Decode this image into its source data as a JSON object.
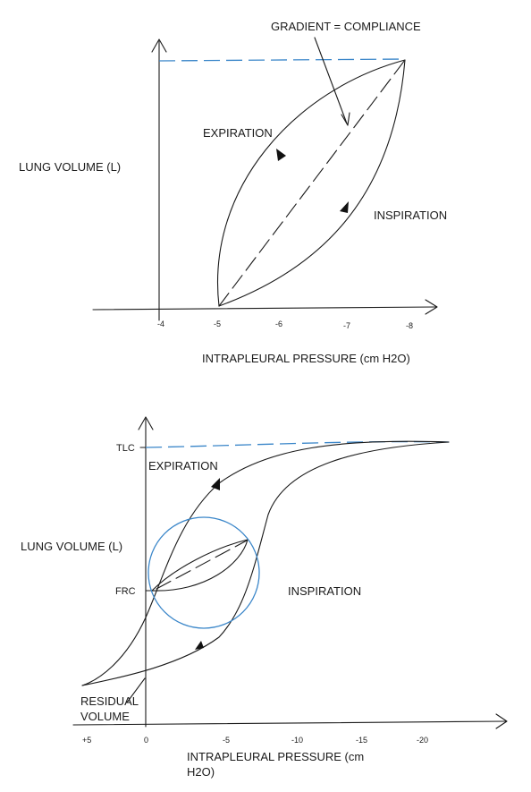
{
  "diagram1": {
    "y_label": "LUNG VOLUME (L)",
    "x_label": "INTRAPLEURAL PRESSURE (cm H2O)",
    "gradient_label": "GRADIENT =  COMPLIANCE",
    "expiration_label": "EXPIRATION",
    "inspiration_label": "INSPIRATION",
    "x_ticks": [
      "-4",
      "-5",
      "-6",
      "-7",
      "-8"
    ]
  },
  "diagram2": {
    "y_label": "LUNG VOLUME (L)",
    "x_label_line1": "INTRAPLEURAL PRESSURE (cm",
    "x_label_line2": "H2O)",
    "tlc_label": "TLC",
    "frc_label": "FRC",
    "expiration_label": "EXPIRATION",
    "inspiration_label": "INSPIRATION",
    "residual_line1": "RESIDUAL",
    "residual_line2": "VOLUME",
    "x_ticks": [
      "+5",
      "0",
      "-5",
      "-10",
      "-15",
      "-20"
    ]
  },
  "colors": {
    "ink": "#1a1a1a",
    "accent_blue": "#3a86c9"
  }
}
